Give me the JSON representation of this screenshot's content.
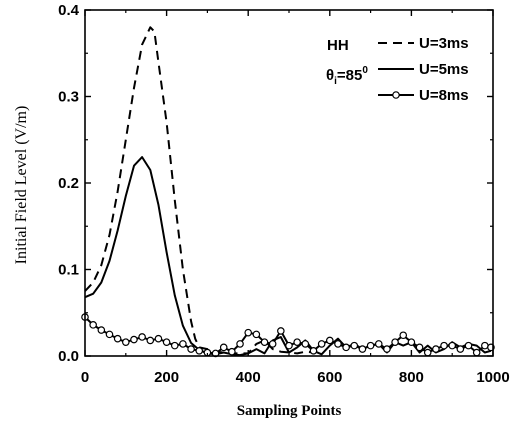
{
  "chart_data": {
    "type": "line",
    "xlabel": "Sampling Points",
    "ylabel": "Initial Field Level (V/m)",
    "xlim": [
      0,
      1000
    ],
    "ylim": [
      0,
      0.4
    ],
    "xticks": [
      0,
      200,
      400,
      600,
      800,
      1000
    ],
    "yticks": [
      0.0,
      0.1,
      0.2,
      0.3,
      0.4
    ],
    "xtick_labels": [
      "0",
      "200",
      "400",
      "600",
      "800",
      "1000"
    ],
    "ytick_labels": [
      "0.0",
      "0.1",
      "0.2",
      "0.3",
      "0.4"
    ],
    "grid": false,
    "legend_position": "top-right",
    "annotation": {
      "polarization": "HH",
      "angle_symbol": "θ",
      "angle_subscript": "i",
      "angle_value": "=85",
      "angle_superscript": "0"
    },
    "series": [
      {
        "name": "U=3ms",
        "style": "dashed",
        "x": [
          0,
          20,
          40,
          60,
          80,
          100,
          120,
          140,
          160,
          170,
          180,
          200,
          220,
          240,
          260,
          270,
          280,
          300,
          320,
          340,
          360,
          380,
          400,
          420,
          440,
          460,
          480,
          500,
          520,
          540,
          560
        ],
        "y": [
          0.075,
          0.085,
          0.105,
          0.14,
          0.19,
          0.25,
          0.31,
          0.36,
          0.38,
          0.375,
          0.34,
          0.27,
          0.18,
          0.1,
          0.04,
          0.02,
          0.01,
          0.008,
          0.005,
          0.004,
          0.003,
          0.003,
          0.003,
          0.014,
          0.018,
          0.008,
          0.005,
          0.004,
          0.003,
          0.005,
          0.004
        ]
      },
      {
        "name": "U=5ms",
        "style": "solid",
        "x": [
          0,
          20,
          40,
          60,
          80,
          100,
          120,
          140,
          160,
          180,
          200,
          220,
          240,
          260,
          280,
          300,
          320,
          340,
          360,
          380,
          400,
          420,
          440,
          460,
          480,
          500,
          520,
          540,
          560,
          580,
          600,
          620,
          640,
          660,
          680,
          700,
          720,
          740,
          760,
          780,
          800,
          820,
          840,
          860,
          880,
          900,
          920,
          940,
          960,
          980,
          995
        ],
        "y": [
          0.068,
          0.072,
          0.085,
          0.11,
          0.145,
          0.185,
          0.22,
          0.23,
          0.215,
          0.175,
          0.12,
          0.07,
          0.035,
          0.015,
          0.007,
          0.003,
          0.002,
          0.004,
          0.002,
          0.001,
          0.003,
          0.008,
          0.003,
          0.018,
          0.022,
          0.004,
          0.01,
          0.018,
          0.006,
          0.002,
          0.012,
          0.02,
          0.01,
          0.014,
          0.008,
          0.012,
          0.014,
          0.004,
          0.016,
          0.012,
          0.016,
          0.004,
          0.012,
          0.004,
          0.008,
          0.016,
          0.01,
          0.014,
          0.012,
          0.004,
          0.006
        ]
      },
      {
        "name": "U=8ms",
        "style": "solid-circle-markers",
        "x": [
          0,
          20,
          40,
          60,
          80,
          100,
          120,
          140,
          160,
          180,
          200,
          220,
          240,
          260,
          280,
          300,
          320,
          340,
          360,
          380,
          400,
          420,
          440,
          460,
          480,
          500,
          520,
          540,
          560,
          580,
          600,
          620,
          640,
          660,
          680,
          700,
          720,
          740,
          760,
          780,
          800,
          820,
          840,
          860,
          880,
          900,
          920,
          940,
          960,
          980,
          995
        ],
        "y": [
          0.045,
          0.036,
          0.03,
          0.025,
          0.02,
          0.016,
          0.019,
          0.022,
          0.018,
          0.02,
          0.016,
          0.012,
          0.014,
          0.008,
          0.006,
          0.004,
          0.003,
          0.01,
          0.005,
          0.014,
          0.027,
          0.025,
          0.016,
          0.014,
          0.029,
          0.012,
          0.016,
          0.014,
          0.006,
          0.014,
          0.018,
          0.014,
          0.01,
          0.012,
          0.008,
          0.012,
          0.014,
          0.008,
          0.016,
          0.024,
          0.016,
          0.01,
          0.004,
          0.008,
          0.012,
          0.012,
          0.008,
          0.012,
          0.004,
          0.012,
          0.01
        ]
      }
    ]
  }
}
